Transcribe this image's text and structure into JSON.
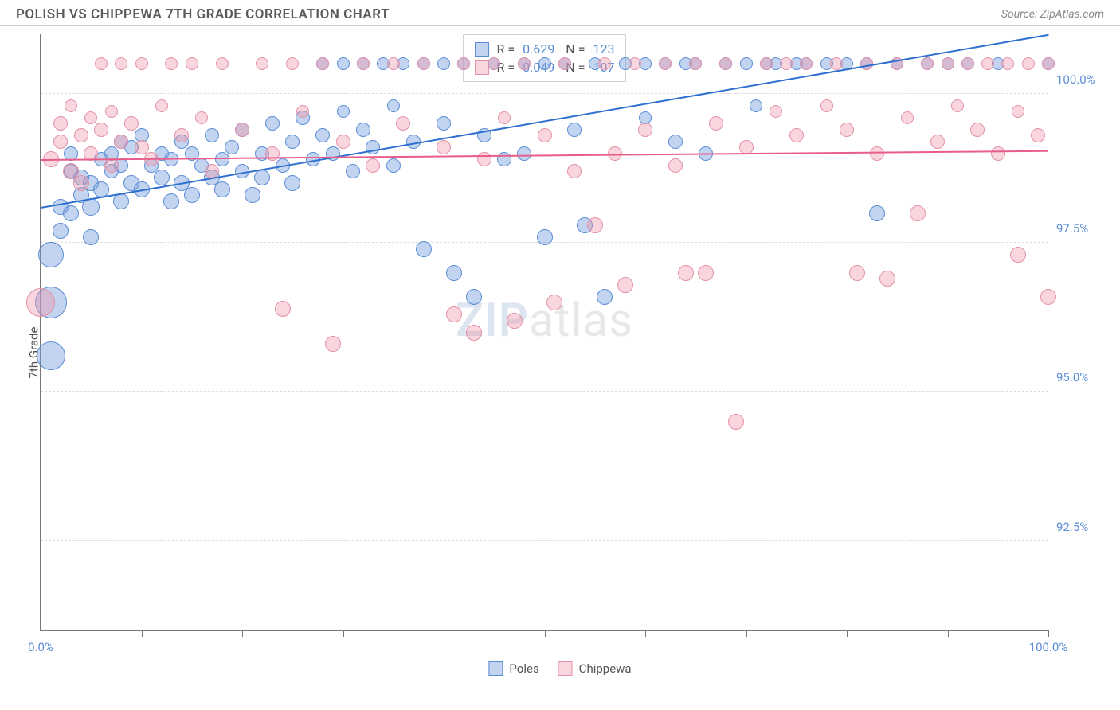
{
  "header": {
    "title": "POLISH VS CHIPPEWA 7TH GRADE CORRELATION CHART",
    "source_prefix": "Source: ",
    "source_name": "ZipAtlas.com"
  },
  "chart": {
    "type": "scatter",
    "y_axis_label": "7th Grade",
    "xlim": [
      0,
      100
    ],
    "ylim": [
      91.0,
      101.0
    ],
    "x_ticks": [
      0,
      10,
      20,
      30,
      40,
      50,
      60,
      70,
      80,
      90,
      100
    ],
    "x_tick_labels": {
      "0": "0.0%",
      "100": "100.0%"
    },
    "y_gridlines": [
      92.5,
      95.0,
      97.5,
      100.0
    ],
    "y_tick_labels": {
      "92.5": "92.5%",
      "95.0": "95.0%",
      "97.5": "97.5%",
      "100.0": "100.0%"
    },
    "y_tick_color": "#5b8dd6",
    "x_tick_color": "#5b8dd6",
    "grid_color": "#dddddd",
    "axis_color": "#777777",
    "background": "#ffffff",
    "watermark": {
      "zip": "ZIP",
      "atlas": "atlas"
    },
    "series": [
      {
        "name": "Poles",
        "fill": "rgba(120,160,220,0.45)",
        "stroke": "#5b8dd6",
        "trend": {
          "x1": 0,
          "y1": 98.1,
          "x2": 100,
          "y2": 101.0,
          "color": "#2e6fd0",
          "width": 2
        },
        "stats": {
          "R": "0.629",
          "N": "123"
        },
        "points": [
          [
            1,
            97.3,
            16
          ],
          [
            1,
            95.6,
            18
          ],
          [
            1,
            96.5,
            20
          ],
          [
            2,
            98.1,
            10
          ],
          [
            2,
            97.7,
            10
          ],
          [
            3,
            98.0,
            10
          ],
          [
            3,
            98.7,
            9
          ],
          [
            3,
            99.0,
            9
          ],
          [
            4,
            98.3,
            10
          ],
          [
            4,
            98.6,
            10
          ],
          [
            5,
            98.1,
            11
          ],
          [
            5,
            98.5,
            10
          ],
          [
            5,
            97.6,
            10
          ],
          [
            6,
            98.9,
            9
          ],
          [
            6,
            98.4,
            10
          ],
          [
            7,
            98.7,
            9
          ],
          [
            7,
            99.0,
            9
          ],
          [
            8,
            98.2,
            10
          ],
          [
            8,
            98.8,
            9
          ],
          [
            8,
            99.2,
            9
          ],
          [
            9,
            98.5,
            10
          ],
          [
            9,
            99.1,
            9
          ],
          [
            10,
            98.4,
            10
          ],
          [
            10,
            99.3,
            9
          ],
          [
            11,
            98.8,
            9
          ],
          [
            12,
            98.6,
            10
          ],
          [
            12,
            99.0,
            9
          ],
          [
            13,
            98.9,
            9
          ],
          [
            13,
            98.2,
            10
          ],
          [
            14,
            99.2,
            9
          ],
          [
            14,
            98.5,
            10
          ],
          [
            15,
            99.0,
            9
          ],
          [
            15,
            98.3,
            10
          ],
          [
            16,
            98.8,
            9
          ],
          [
            17,
            99.3,
            9
          ],
          [
            17,
            98.6,
            10
          ],
          [
            18,
            98.9,
            9
          ],
          [
            18,
            98.4,
            10
          ],
          [
            19,
            99.1,
            9
          ],
          [
            20,
            98.7,
            9
          ],
          [
            20,
            99.4,
            9
          ],
          [
            21,
            98.3,
            10
          ],
          [
            22,
            99.0,
            9
          ],
          [
            22,
            98.6,
            10
          ],
          [
            23,
            99.5,
            9
          ],
          [
            24,
            98.8,
            9
          ],
          [
            25,
            99.2,
            9
          ],
          [
            25,
            98.5,
            10
          ],
          [
            26,
            99.6,
            9
          ],
          [
            27,
            98.9,
            9
          ],
          [
            28,
            99.3,
            9
          ],
          [
            28,
            100.5,
            8
          ],
          [
            29,
            99.0,
            9
          ],
          [
            30,
            99.7,
            8
          ],
          [
            30,
            100.5,
            8
          ],
          [
            31,
            98.7,
            9
          ],
          [
            32,
            99.4,
            9
          ],
          [
            32,
            100.5,
            8
          ],
          [
            33,
            99.1,
            9
          ],
          [
            34,
            100.5,
            8
          ],
          [
            35,
            99.8,
            8
          ],
          [
            35,
            98.8,
            9
          ],
          [
            36,
            100.5,
            8
          ],
          [
            37,
            99.2,
            9
          ],
          [
            38,
            100.5,
            8
          ],
          [
            38,
            97.4,
            10
          ],
          [
            40,
            99.5,
            9
          ],
          [
            40,
            100.5,
            8
          ],
          [
            41,
            97.0,
            10
          ],
          [
            42,
            100.5,
            8
          ],
          [
            43,
            96.6,
            10
          ],
          [
            44,
            99.3,
            9
          ],
          [
            45,
            100.5,
            8
          ],
          [
            46,
            98.9,
            9
          ],
          [
            48,
            100.5,
            8
          ],
          [
            48,
            99.0,
            9
          ],
          [
            50,
            100.5,
            8
          ],
          [
            50,
            97.6,
            10
          ],
          [
            52,
            100.5,
            8
          ],
          [
            53,
            99.4,
            9
          ],
          [
            54,
            97.8,
            10
          ],
          [
            55,
            100.5,
            8
          ],
          [
            56,
            96.6,
            10
          ],
          [
            58,
            100.5,
            8
          ],
          [
            60,
            99.6,
            8
          ],
          [
            60,
            100.5,
            8
          ],
          [
            62,
            100.5,
            8
          ],
          [
            63,
            99.2,
            9
          ],
          [
            64,
            100.5,
            8
          ],
          [
            65,
            100.5,
            8
          ],
          [
            66,
            99.0,
            9
          ],
          [
            68,
            100.5,
            8
          ],
          [
            70,
            100.5,
            8
          ],
          [
            71,
            99.8,
            8
          ],
          [
            72,
            100.5,
            8
          ],
          [
            73,
            100.5,
            8
          ],
          [
            75,
            100.5,
            8
          ],
          [
            76,
            100.5,
            8
          ],
          [
            78,
            100.5,
            8
          ],
          [
            80,
            100.5,
            8
          ],
          [
            82,
            100.5,
            8
          ],
          [
            83,
            98.0,
            10
          ],
          [
            85,
            100.5,
            8
          ],
          [
            88,
            100.5,
            8
          ],
          [
            90,
            100.5,
            8
          ],
          [
            92,
            100.5,
            8
          ],
          [
            95,
            100.5,
            8
          ],
          [
            100,
            100.5,
            8
          ]
        ]
      },
      {
        "name": "Chippewa",
        "fill": "rgba(240,150,170,0.40)",
        "stroke": "#e391a8",
        "trend": {
          "x1": 0,
          "y1": 98.9,
          "x2": 100,
          "y2": 99.05,
          "color": "#e85d8a",
          "width": 2
        },
        "stats": {
          "R": "0.049",
          "N": "107"
        },
        "points": [
          [
            0,
            96.5,
            18
          ],
          [
            1,
            98.9,
            10
          ],
          [
            2,
            99.2,
            9
          ],
          [
            2,
            99.5,
            9
          ],
          [
            3,
            98.7,
            10
          ],
          [
            3,
            99.8,
            8
          ],
          [
            4,
            99.3,
            9
          ],
          [
            4,
            98.5,
            10
          ],
          [
            5,
            99.6,
            8
          ],
          [
            5,
            99.0,
            9
          ],
          [
            6,
            99.4,
            9
          ],
          [
            6,
            100.5,
            8
          ],
          [
            7,
            98.8,
            9
          ],
          [
            7,
            99.7,
            8
          ],
          [
            8,
            99.2,
            9
          ],
          [
            8,
            100.5,
            8
          ],
          [
            9,
            99.5,
            9
          ],
          [
            10,
            99.1,
            9
          ],
          [
            10,
            100.5,
            8
          ],
          [
            11,
            98.9,
            9
          ],
          [
            12,
            99.8,
            8
          ],
          [
            13,
            100.5,
            8
          ],
          [
            14,
            99.3,
            9
          ],
          [
            15,
            100.5,
            8
          ],
          [
            16,
            99.6,
            8
          ],
          [
            17,
            98.7,
            9
          ],
          [
            18,
            100.5,
            8
          ],
          [
            20,
            99.4,
            9
          ],
          [
            22,
            100.5,
            8
          ],
          [
            23,
            99.0,
            9
          ],
          [
            24,
            96.4,
            10
          ],
          [
            25,
            100.5,
            8
          ],
          [
            26,
            99.7,
            8
          ],
          [
            28,
            100.5,
            8
          ],
          [
            29,
            95.8,
            10
          ],
          [
            30,
            99.2,
            9
          ],
          [
            32,
            100.5,
            8
          ],
          [
            33,
            98.8,
            9
          ],
          [
            35,
            100.5,
            8
          ],
          [
            36,
            99.5,
            9
          ],
          [
            38,
            100.5,
            8
          ],
          [
            40,
            99.1,
            9
          ],
          [
            41,
            96.3,
            10
          ],
          [
            42,
            100.5,
            8
          ],
          [
            43,
            96.0,
            10
          ],
          [
            44,
            98.9,
            9
          ],
          [
            45,
            100.5,
            8
          ],
          [
            46,
            99.6,
            8
          ],
          [
            47,
            96.2,
            10
          ],
          [
            48,
            100.5,
            8
          ],
          [
            50,
            99.3,
            9
          ],
          [
            51,
            96.5,
            10
          ],
          [
            52,
            100.5,
            8
          ],
          [
            53,
            98.7,
            9
          ],
          [
            55,
            97.8,
            10
          ],
          [
            56,
            100.5,
            8
          ],
          [
            57,
            99.0,
            9
          ],
          [
            58,
            96.8,
            10
          ],
          [
            59,
            100.5,
            8
          ],
          [
            60,
            99.4,
            9
          ],
          [
            62,
            100.5,
            8
          ],
          [
            63,
            98.8,
            9
          ],
          [
            64,
            97.0,
            10
          ],
          [
            65,
            100.5,
            8
          ],
          [
            66,
            97.0,
            10
          ],
          [
            67,
            99.5,
            9
          ],
          [
            68,
            100.5,
            8
          ],
          [
            69,
            94.5,
            10
          ],
          [
            70,
            99.1,
            9
          ],
          [
            72,
            100.5,
            8
          ],
          [
            73,
            99.7,
            8
          ],
          [
            74,
            100.5,
            8
          ],
          [
            75,
            99.3,
            9
          ],
          [
            76,
            100.5,
            8
          ],
          [
            78,
            99.8,
            8
          ],
          [
            79,
            100.5,
            8
          ],
          [
            80,
            99.4,
            9
          ],
          [
            81,
            97.0,
            10
          ],
          [
            82,
            100.5,
            8
          ],
          [
            83,
            99.0,
            9
          ],
          [
            84,
            96.9,
            10
          ],
          [
            85,
            100.5,
            8
          ],
          [
            86,
            99.6,
            8
          ],
          [
            87,
            98.0,
            10
          ],
          [
            88,
            100.5,
            8
          ],
          [
            89,
            99.2,
            9
          ],
          [
            90,
            100.5,
            8
          ],
          [
            91,
            99.8,
            8
          ],
          [
            92,
            100.5,
            8
          ],
          [
            93,
            99.4,
            9
          ],
          [
            94,
            100.5,
            8
          ],
          [
            95,
            99.0,
            9
          ],
          [
            96,
            100.5,
            8
          ],
          [
            97,
            99.7,
            8
          ],
          [
            97,
            97.3,
            10
          ],
          [
            98,
            100.5,
            8
          ],
          [
            99,
            99.3,
            9
          ],
          [
            100,
            100.5,
            8
          ],
          [
            100,
            96.6,
            10
          ]
        ]
      }
    ],
    "bottom_legend": [
      {
        "label": "Poles",
        "fill": "rgba(120,160,220,0.45)",
        "stroke": "#5b8dd6"
      },
      {
        "label": "Chippewa",
        "fill": "rgba(240,150,170,0.40)",
        "stroke": "#e391a8"
      }
    ]
  }
}
